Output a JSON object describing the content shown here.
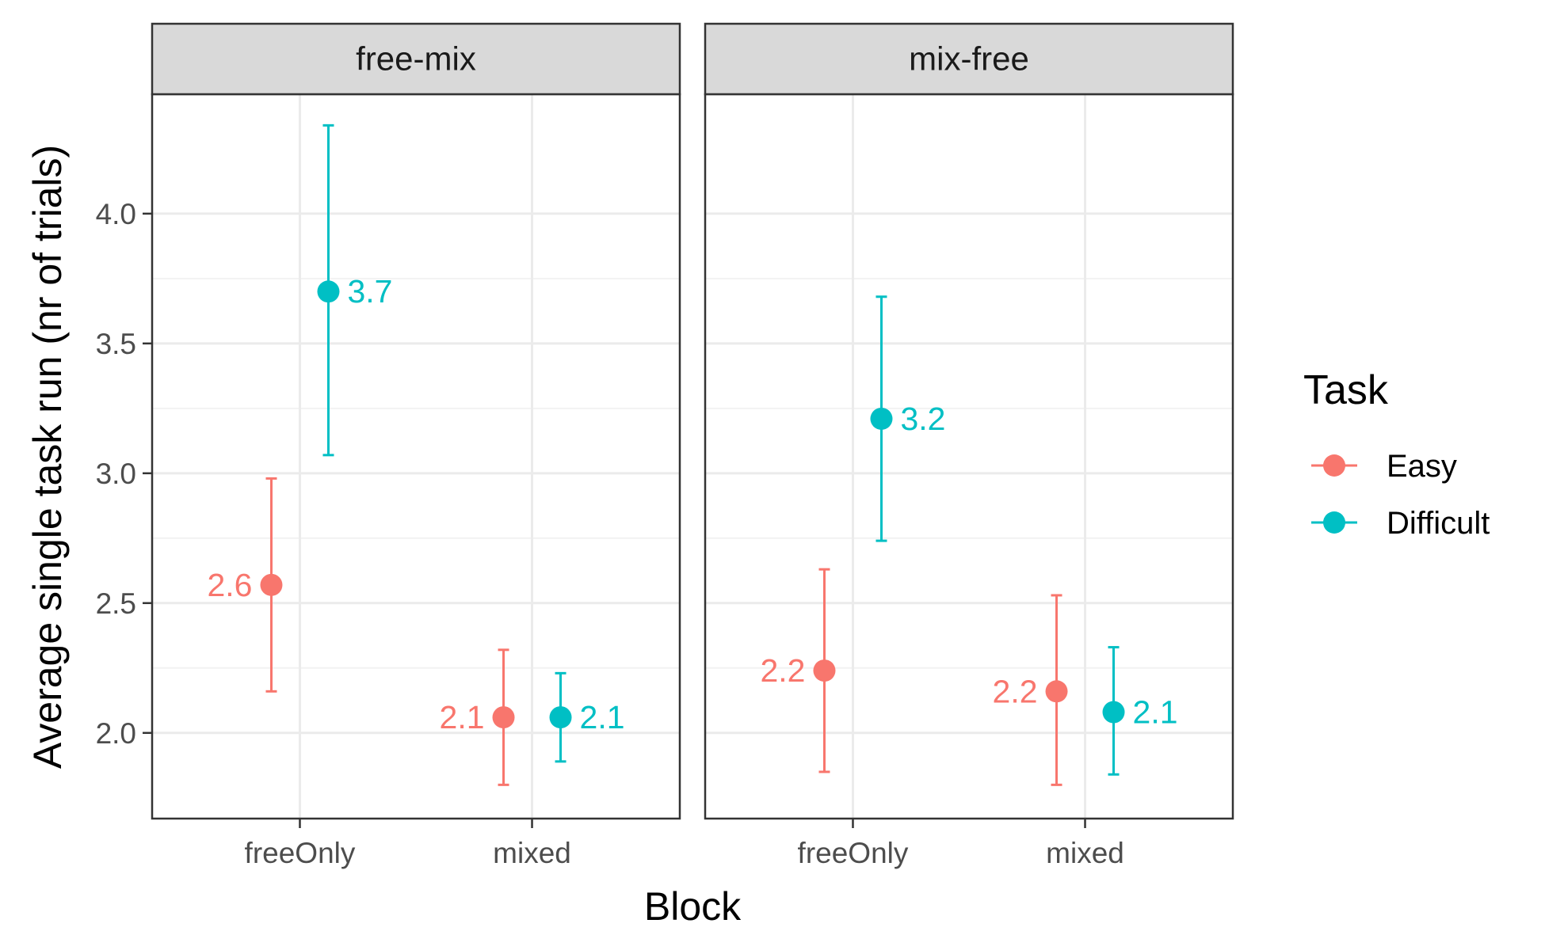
{
  "chart_data": {
    "type": "scatter",
    "subtype": "faceted point estimates with error bars",
    "xlabel": "Block",
    "ylabel": "Average single task run (nr of trials)",
    "categories": [
      "freeOnly",
      "mixed"
    ],
    "ylim": [
      1.67,
      4.46
    ],
    "yticks": [
      2.0,
      2.5,
      3.0,
      3.5,
      4.0
    ],
    "ytick_labels": [
      "2.0",
      "2.5",
      "3.0",
      "3.5",
      "4.0"
    ],
    "grid": true,
    "legend": {
      "title": "Task",
      "position": "right",
      "entries": [
        {
          "name": "Easy",
          "color": "#F8766D"
        },
        {
          "name": "Difficult",
          "color": "#00BFC4"
        }
      ]
    },
    "facets": [
      {
        "label": "free-mix",
        "series": [
          {
            "name": "Easy",
            "color": "#F8766D",
            "points": [
              {
                "x": "freeOnly",
                "y": 2.57,
                "ymin": 2.16,
                "ymax": 2.98,
                "label": "2.6"
              },
              {
                "x": "mixed",
                "y": 2.06,
                "ymin": 1.8,
                "ymax": 2.32,
                "label": "2.1"
              }
            ]
          },
          {
            "name": "Difficult",
            "color": "#00BFC4",
            "points": [
              {
                "x": "freeOnly",
                "y": 3.7,
                "ymin": 3.07,
                "ymax": 4.34,
                "label": "3.7"
              },
              {
                "x": "mixed",
                "y": 2.06,
                "ymin": 1.89,
                "ymax": 2.23,
                "label": "2.1"
              }
            ]
          }
        ]
      },
      {
        "label": "mix-free",
        "series": [
          {
            "name": "Easy",
            "color": "#F8766D",
            "points": [
              {
                "x": "freeOnly",
                "y": 2.24,
                "ymin": 1.85,
                "ymax": 2.63,
                "label": "2.2"
              },
              {
                "x": "mixed",
                "y": 2.16,
                "ymin": 1.8,
                "ymax": 2.53,
                "label": "2.2"
              }
            ]
          },
          {
            "name": "Difficult",
            "color": "#00BFC4",
            "points": [
              {
                "x": "freeOnly",
                "y": 3.21,
                "ymin": 2.74,
                "ymax": 3.68,
                "label": "3.2"
              },
              {
                "x": "mixed",
                "y": 2.08,
                "ymin": 1.84,
                "ymax": 2.33,
                "label": "2.1"
              }
            ]
          }
        ]
      }
    ]
  }
}
